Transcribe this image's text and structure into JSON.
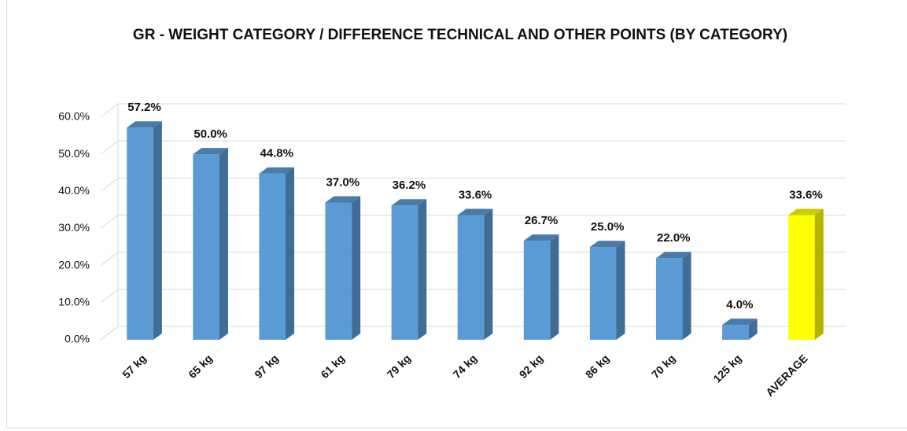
{
  "chart_data": {
    "type": "bar3d",
    "title": "GR - WEIGHT CATEGORY / DIFFERENCE TECHNICAL AND OTHER POINTS (BY CATEGORY)",
    "categories": [
      "57 kg",
      "65 kg",
      "97 kg",
      "61 kg",
      "79 kg",
      "74 kg",
      "92 kg",
      "86 kg",
      "70 kg",
      "125 kg",
      "AVERAGE"
    ],
    "values": [
      57.2,
      50.0,
      44.8,
      37.0,
      36.2,
      33.6,
      26.7,
      25.0,
      22.0,
      4.0,
      33.6
    ],
    "value_labels": [
      "57.2%",
      "50.0%",
      "44.8%",
      "37.0%",
      "36.2%",
      "33.6%",
      "26.7%",
      "25.0%",
      "22.0%",
      "4.0%",
      "33.6%"
    ],
    "colors": [
      "#5b9bd5",
      "#5b9bd5",
      "#5b9bd5",
      "#5b9bd5",
      "#5b9bd5",
      "#5b9bd5",
      "#5b9bd5",
      "#5b9bd5",
      "#5b9bd5",
      "#5b9bd5",
      "#ffff00"
    ],
    "ylim": [
      0,
      60
    ],
    "yticks": [
      {
        "value": 0,
        "label": "0.0%"
      },
      {
        "value": 10,
        "label": "10.0%"
      },
      {
        "value": 20,
        "label": "20.0%"
      },
      {
        "value": 30,
        "label": "30.0%"
      },
      {
        "value": 40,
        "label": "40.0%"
      },
      {
        "value": 50,
        "label": "50.0%"
      },
      {
        "value": 60,
        "label": "60.0%"
      }
    ],
    "grid": true
  }
}
